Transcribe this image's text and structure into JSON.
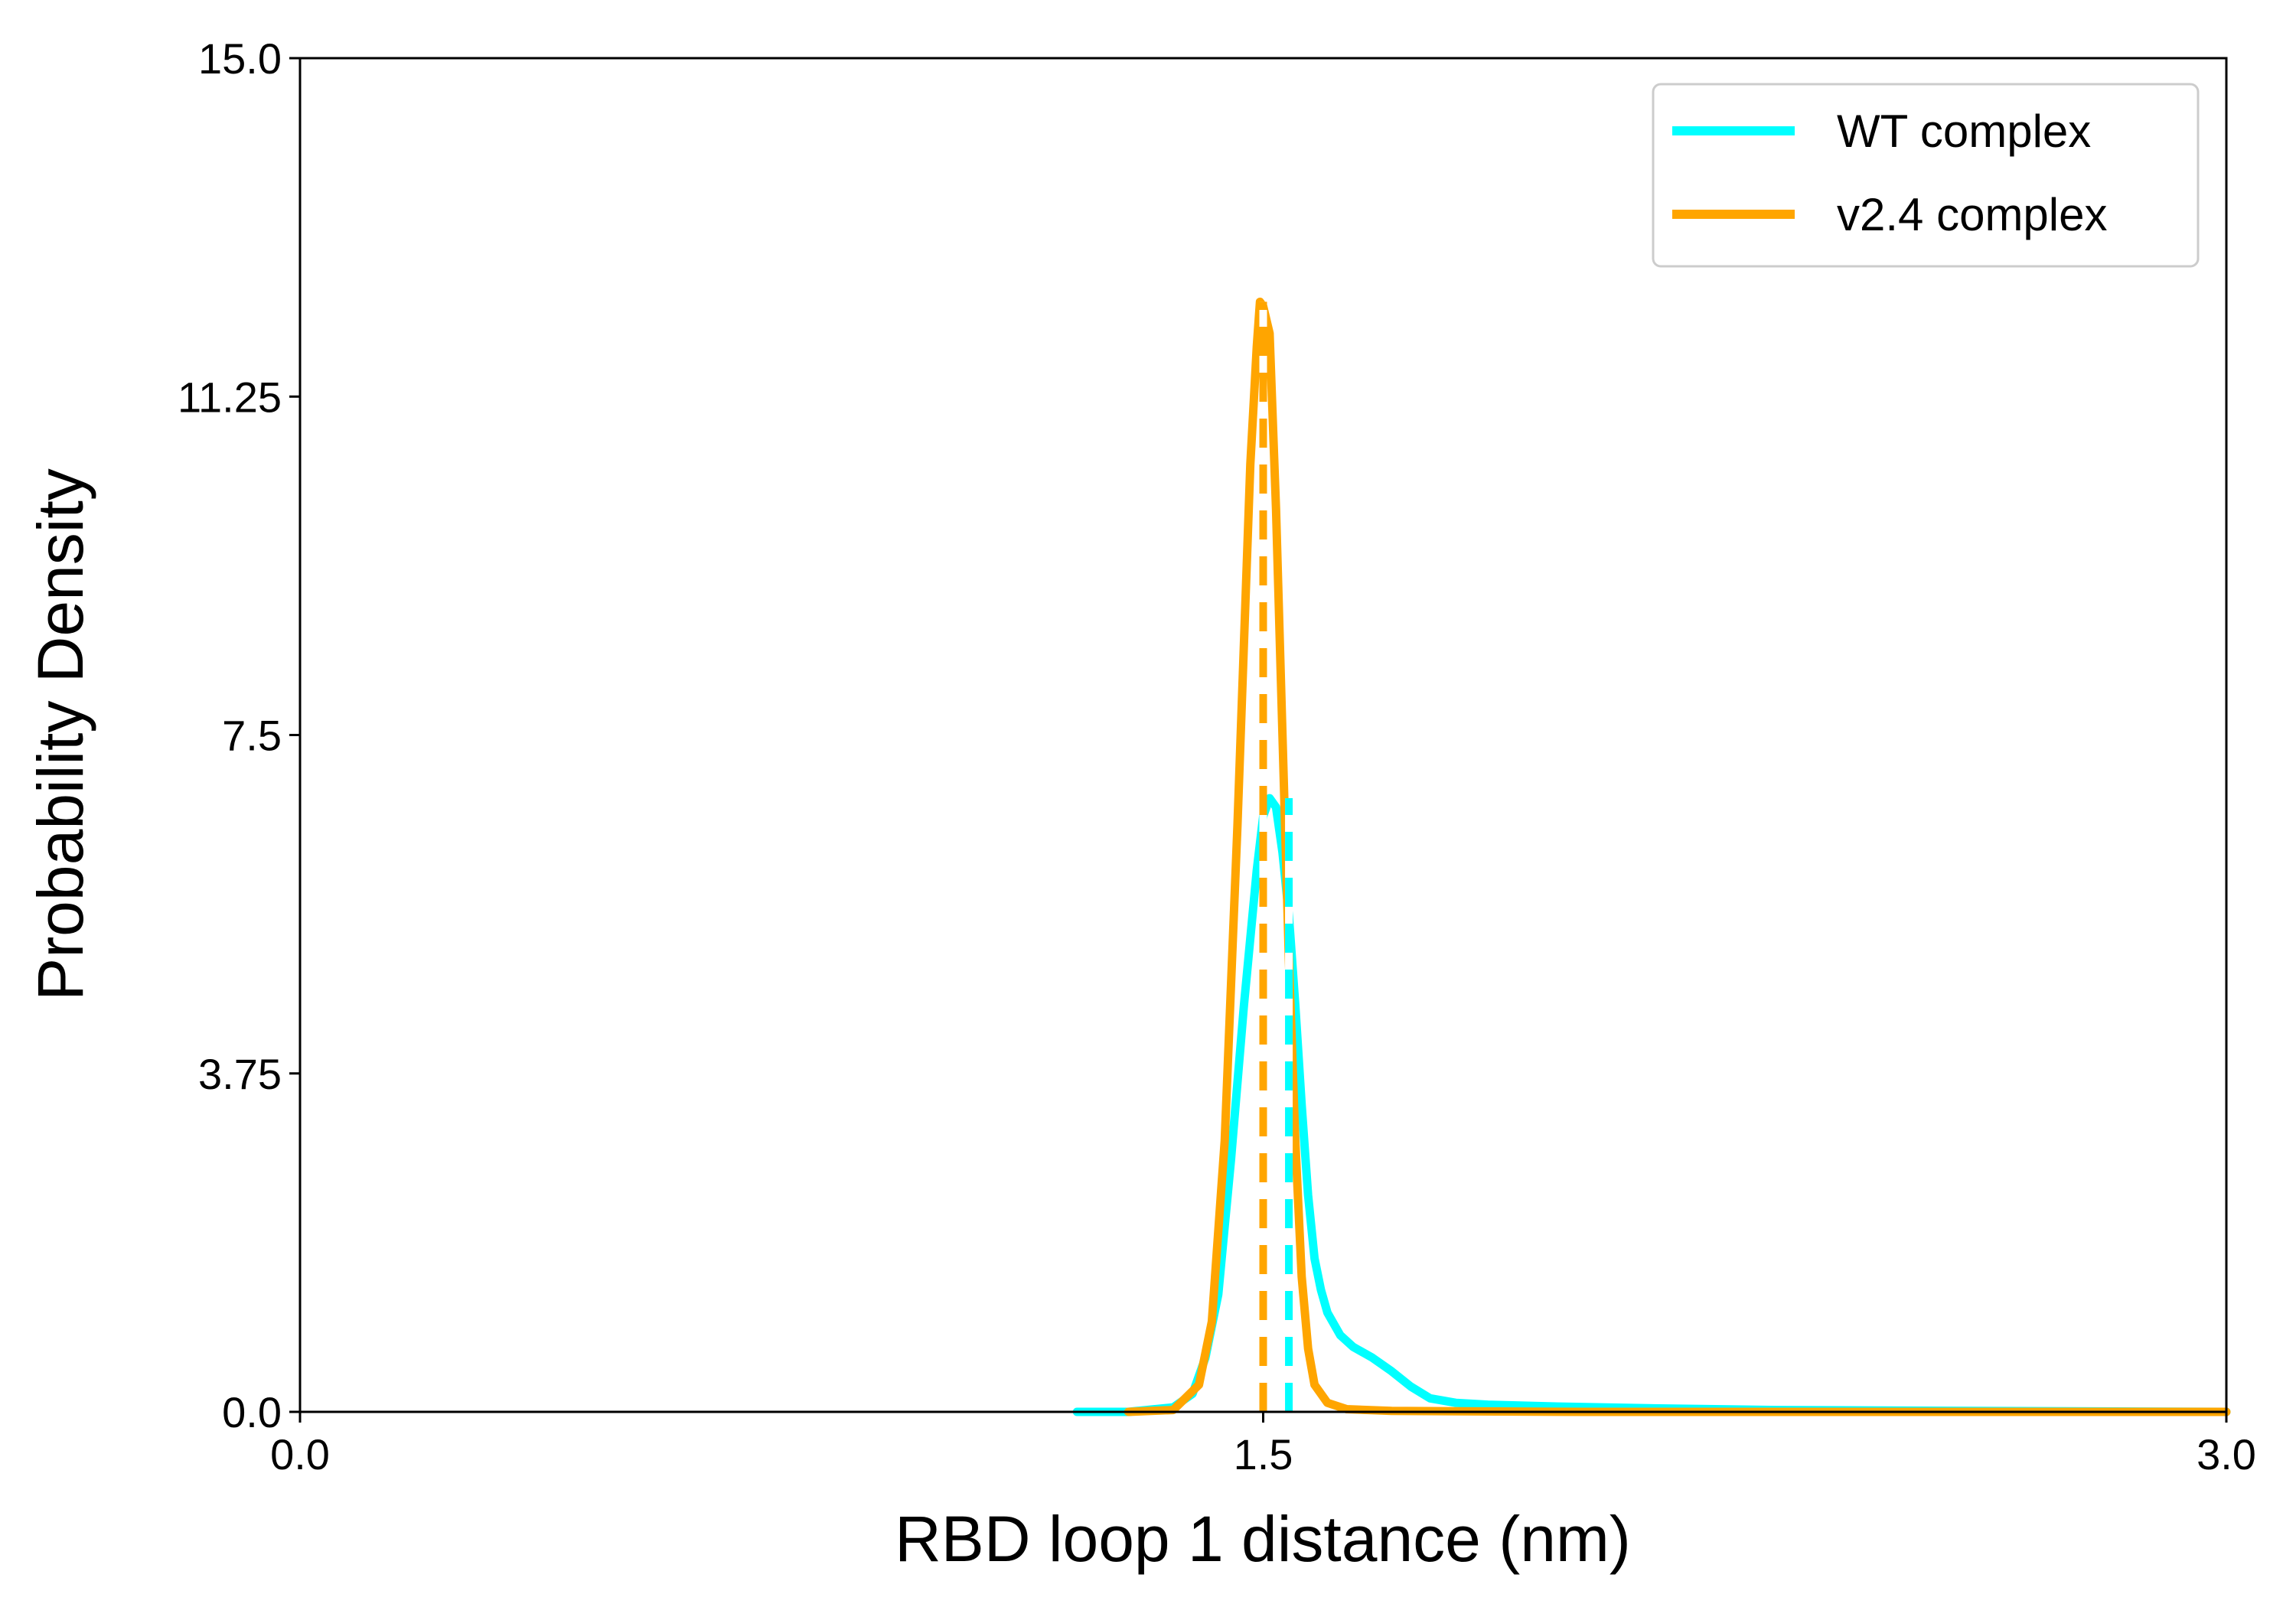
{
  "chart_data": {
    "type": "line",
    "title": "",
    "xlabel": "RBD loop 1 distance (nm)",
    "ylabel": "Probability Density",
    "xlim": [
      0.0,
      3.0
    ],
    "ylim": [
      0.0,
      15.0
    ],
    "xticks": [
      0.0,
      1.5,
      3.0
    ],
    "xtick_labels": [
      "0.0",
      "1.5",
      "3.0"
    ],
    "yticks": [
      0.0,
      3.75,
      7.5,
      11.25,
      15.0
    ],
    "ytick_labels": [
      "0.0",
      "3.75",
      "7.5",
      "11.25",
      "15.0"
    ],
    "grid": false,
    "legend_position": "top-right",
    "series": [
      {
        "name": "WT complex",
        "color": "#00ffff",
        "mean_line_x": 1.54,
        "x": [
          1.21,
          1.29,
          1.36,
          1.39,
          1.41,
          1.43,
          1.45,
          1.47,
          1.49,
          1.5,
          1.51,
          1.52,
          1.53,
          1.54,
          1.55,
          1.56,
          1.57,
          1.58,
          1.59,
          1.6,
          1.62,
          1.64,
          1.67,
          1.7,
          1.73,
          1.76,
          1.8,
          1.85,
          1.95,
          2.1,
          2.3,
          2.6,
          3.0
        ],
        "y": [
          0.0,
          0.0,
          0.05,
          0.2,
          0.6,
          1.3,
          2.8,
          4.5,
          6.0,
          6.6,
          6.8,
          6.7,
          6.2,
          5.5,
          4.5,
          3.4,
          2.4,
          1.7,
          1.35,
          1.1,
          0.85,
          0.72,
          0.6,
          0.45,
          0.28,
          0.15,
          0.1,
          0.08,
          0.06,
          0.04,
          0.02,
          0.01,
          0.0
        ]
      },
      {
        "name": "v2.4 complex",
        "color": "#ffa500",
        "mean_line_x": 1.5,
        "x": [
          1.29,
          1.36,
          1.4,
          1.42,
          1.44,
          1.46,
          1.47,
          1.48,
          1.49,
          1.495,
          1.5,
          1.51,
          1.52,
          1.53,
          1.54,
          1.55,
          1.56,
          1.57,
          1.58,
          1.6,
          1.63,
          1.7,
          2.0,
          3.0
        ],
        "y": [
          0.0,
          0.02,
          0.3,
          1.0,
          3.0,
          6.5,
          8.5,
          10.5,
          11.8,
          12.3,
          12.25,
          11.95,
          10.0,
          7.5,
          5.0,
          3.0,
          1.5,
          0.7,
          0.3,
          0.1,
          0.03,
          0.01,
          0.0,
          0.0
        ]
      }
    ]
  }
}
